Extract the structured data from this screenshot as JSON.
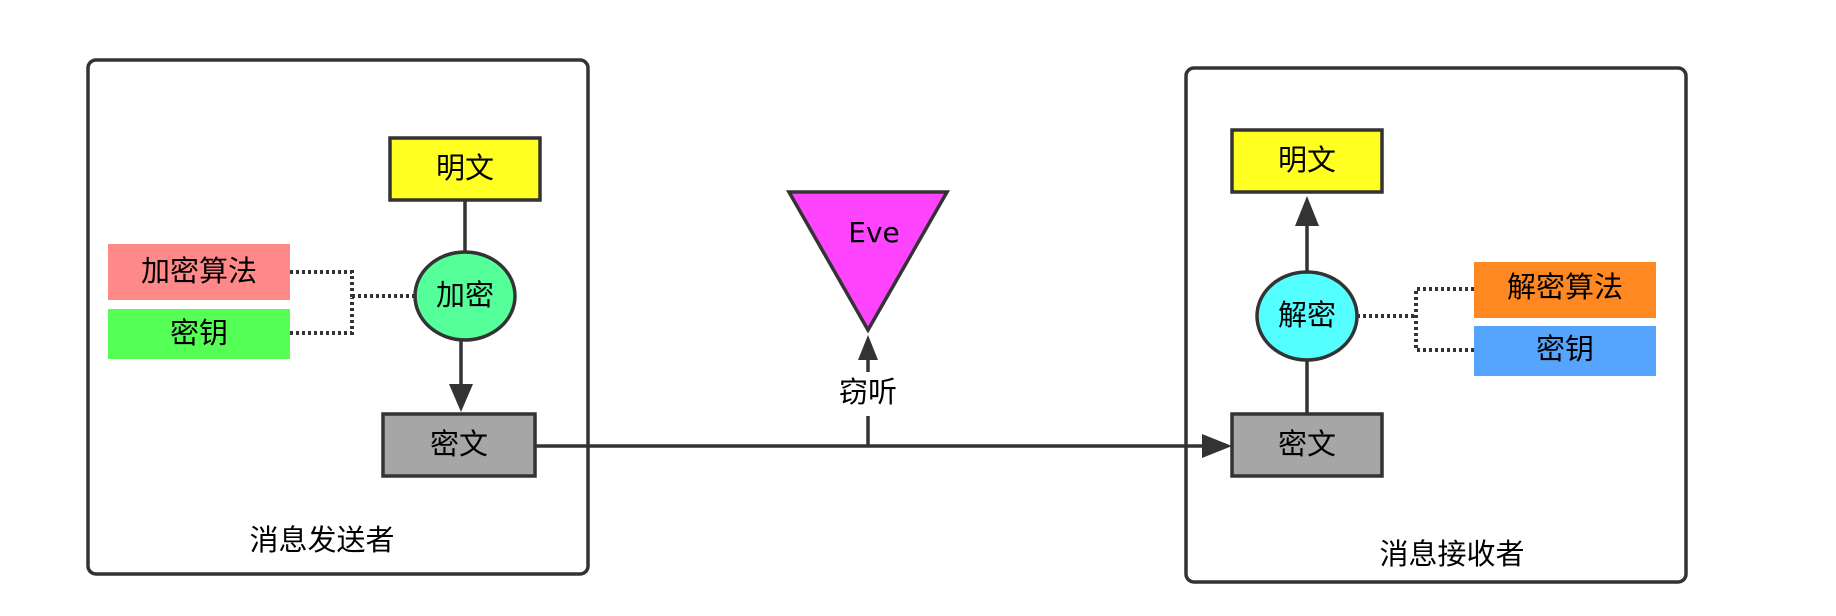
{
  "sender": {
    "caption": "消息发送者",
    "plaintext": "明文",
    "encrypt": "加密",
    "algorithm": "加密算法",
    "key": "密钥",
    "ciphertext": "密文"
  },
  "eve": {
    "label": "Eve",
    "eavesdrop": "窃听"
  },
  "receiver": {
    "caption": "消息接收者",
    "plaintext": "明文",
    "decrypt": "解密",
    "algorithm": "解密算法",
    "key": "密钥",
    "ciphertext": "密文"
  },
  "colors": {
    "plaintext": "#ffff22",
    "ciphertext": "#a6a6a6",
    "encrypt": "#55ff99",
    "decrypt": "#55ffff",
    "encrypt_algorithm": "#ff8888",
    "encrypt_key": "#55ff55",
    "decrypt_algorithm": "#ff8822",
    "decrypt_key": "#55a5ff",
    "eve": "#ff44ff"
  }
}
